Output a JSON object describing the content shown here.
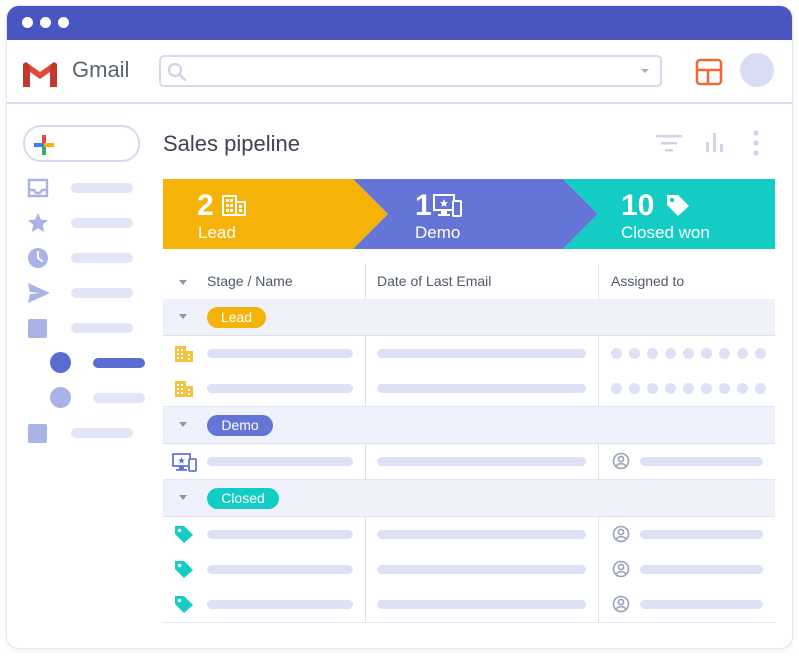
{
  "app": {
    "name": "Gmail"
  },
  "page": {
    "title": "Sales pipeline"
  },
  "colors": {
    "lead": "#f5b30a",
    "demo": "#6575d6",
    "closed": "#13cdc4",
    "titlebar": "#4a55c2"
  },
  "stages": [
    {
      "count": "2",
      "label": "Lead",
      "icon": "building-icon"
    },
    {
      "count": "1",
      "label": "Demo",
      "icon": "monitor-icon"
    },
    {
      "count": "10",
      "label": "Closed won",
      "icon": "tag-icon"
    }
  ],
  "table": {
    "columns": [
      "Stage / Name",
      "Date of Last Email",
      "Assigned to"
    ],
    "groups": [
      {
        "label": "Lead",
        "rows": 2,
        "row_icon": "building-icon"
      },
      {
        "label": "Demo",
        "rows": 1,
        "row_icon": "monitor-icon"
      },
      {
        "label": "Closed",
        "rows": 3,
        "row_icon": "tag-icon"
      }
    ]
  }
}
